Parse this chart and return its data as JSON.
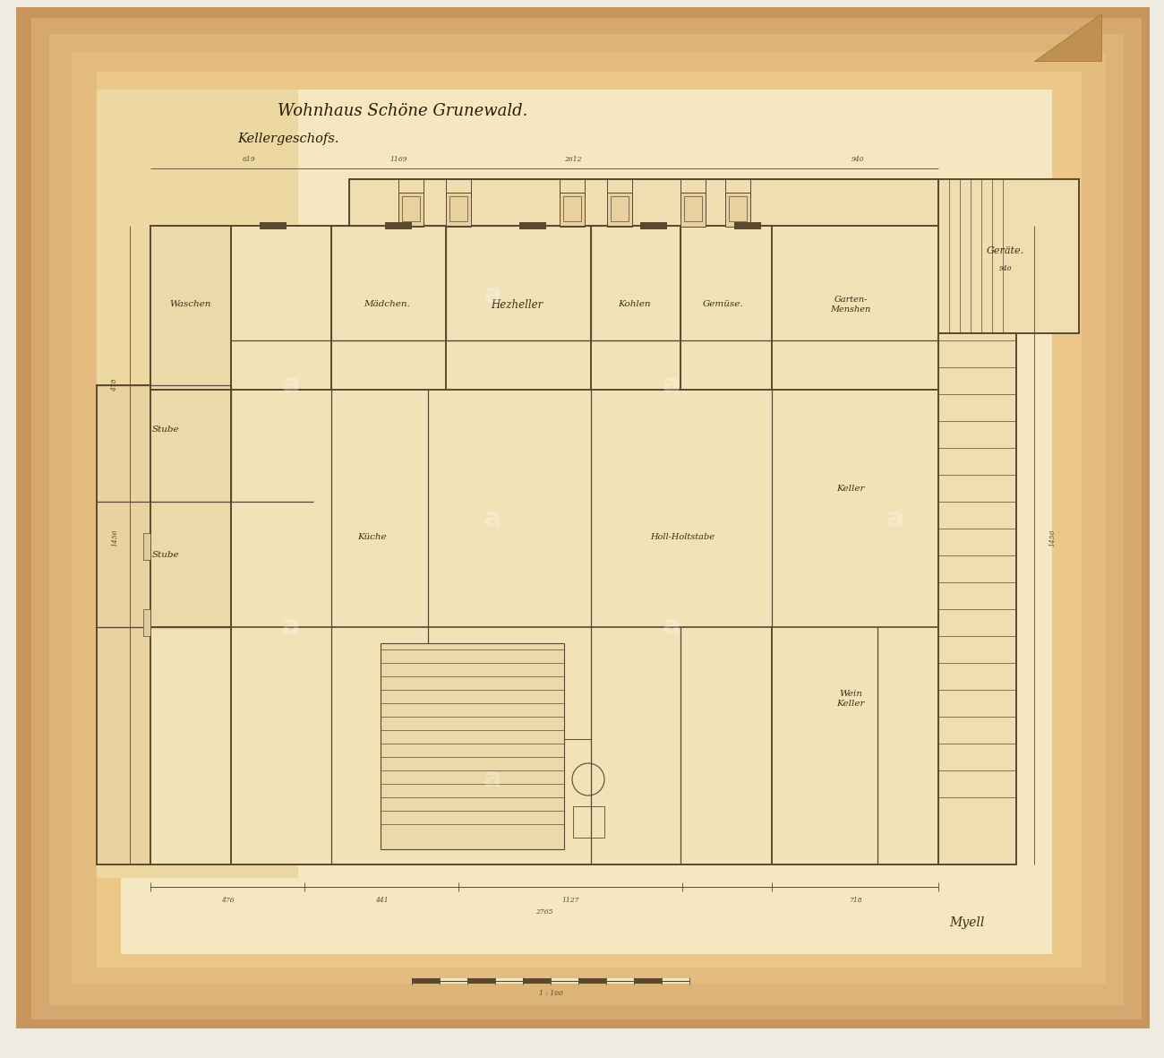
{
  "bg_white": "#f5f0ea",
  "bg_paper_outer": "#c8945a",
  "bg_paper_mid": "#d4a86a",
  "bg_paper_inner": "#e0b87a",
  "bg_plan_area": "#f2e4c8",
  "bg_plan_light": "#f5ead0",
  "line_color": "#5a4830",
  "dim_color": "#5a4830",
  "text_color": "#3a2e18",
  "title_line1": "Wohnhaus Schöne Grunewald.",
  "title_line2": "Kellergeschofs.",
  "signature": "Myell",
  "scale_label": "1 : 100"
}
